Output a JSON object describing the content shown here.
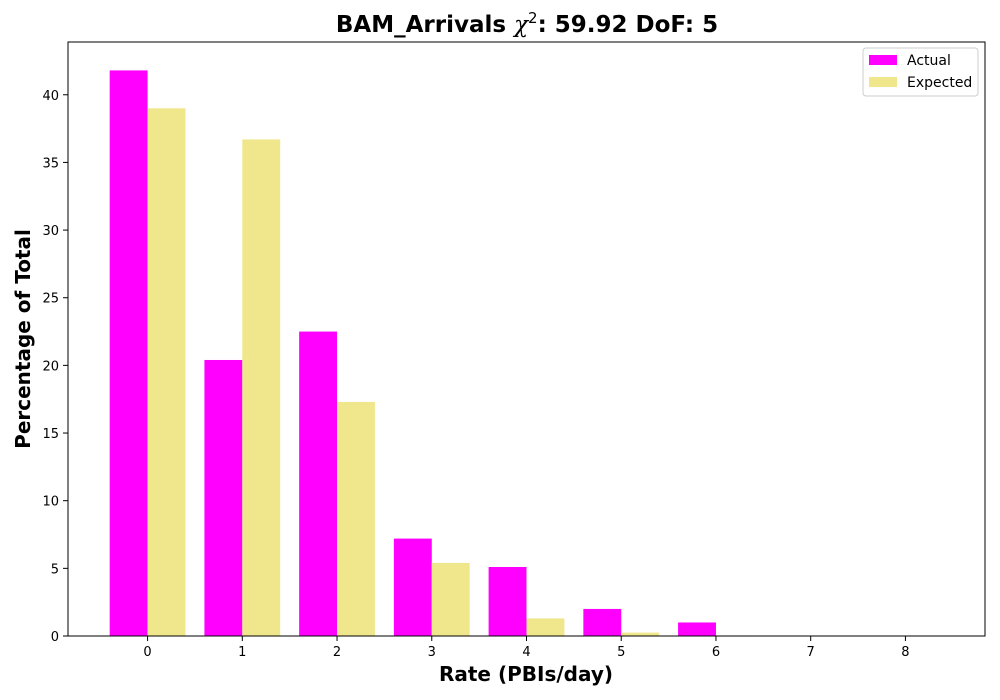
{
  "chart_data": {
    "type": "bar",
    "title_prefix": "BAM_Arrivals ",
    "title_chi": "χ",
    "title_sup": "2",
    "title_suffix": ": 59.92 DoF: 5",
    "xlabel": "Rate (PBIs/day)",
    "ylabel": "Percentage of Total",
    "categories": [
      "0",
      "1",
      "2",
      "3",
      "4",
      "5",
      "6",
      "7",
      "8"
    ],
    "xlim": [
      -0.84,
      8.84
    ],
    "ylim": [
      0,
      43.9
    ],
    "yticks": [
      0,
      5,
      10,
      15,
      20,
      25,
      30,
      35,
      40
    ],
    "legend_position": "top-right",
    "grid": false,
    "series": [
      {
        "name": "Actual",
        "color": "#ff00ff",
        "values": [
          41.8,
          20.4,
          22.5,
          7.2,
          5.1,
          2.0,
          1.0,
          0,
          0
        ]
      },
      {
        "name": "Expected",
        "color": "#f0e68c",
        "values": [
          39.0,
          36.7,
          17.3,
          5.4,
          1.3,
          0.25,
          0.04,
          0,
          0
        ]
      }
    ]
  }
}
